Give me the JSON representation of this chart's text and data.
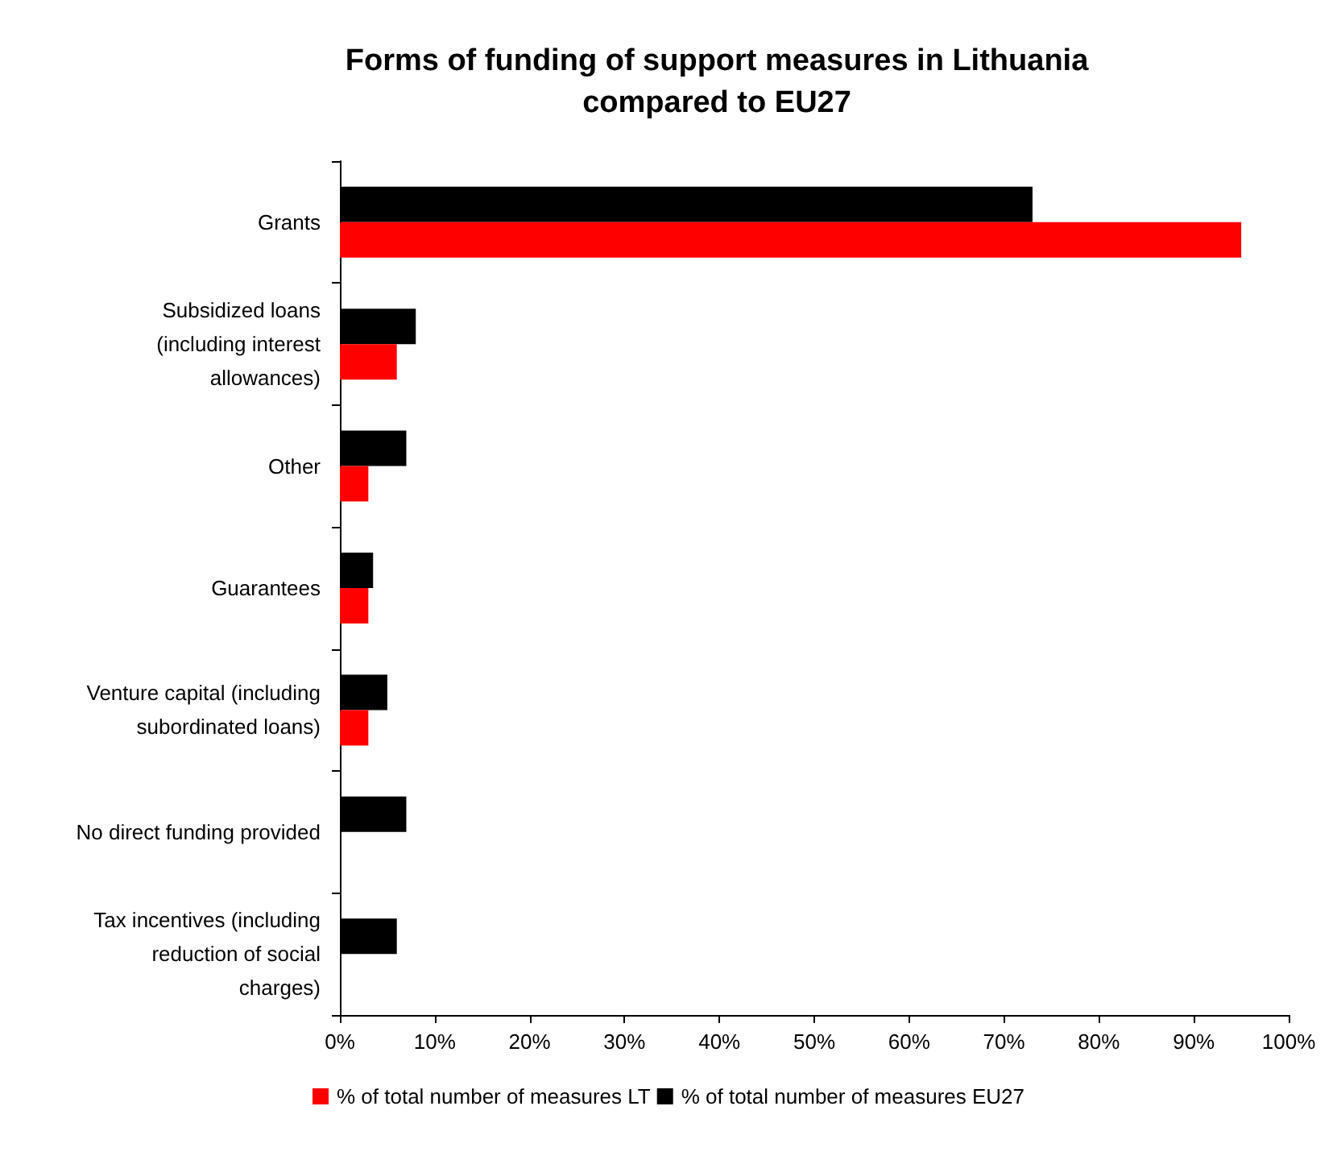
{
  "chart_data": {
    "type": "bar",
    "orientation": "horizontal",
    "title": "Forms of funding of support measures in Lithuania\ncompared to EU27",
    "categories": [
      "Grants",
      "Subsidized loans\n(including interest\nallowances)",
      "Other",
      "Guarantees",
      "Venture capital (including\nsubordinated loans)",
      "No direct funding provided",
      "Tax incentives (including\nreduction of social\ncharges)"
    ],
    "series": [
      {
        "name": "% of total number of measures LT",
        "color": "#ff0000",
        "values": [
          95,
          6,
          3,
          3,
          3,
          0,
          0
        ]
      },
      {
        "name": "% of total number of measures EU27",
        "color": "#000000",
        "values": [
          73,
          8,
          7,
          3.5,
          5,
          7,
          6
        ]
      }
    ],
    "xlim": [
      0,
      100
    ],
    "xticks": [
      {
        "value": 0,
        "label": "0%"
      },
      {
        "value": 10,
        "label": "10%"
      },
      {
        "value": 20,
        "label": "20%"
      },
      {
        "value": 30,
        "label": "30%"
      },
      {
        "value": 40,
        "label": "40%"
      },
      {
        "value": 50,
        "label": "50%"
      },
      {
        "value": 60,
        "label": "60%"
      },
      {
        "value": 70,
        "label": "70%"
      },
      {
        "value": 80,
        "label": "80%"
      },
      {
        "value": 90,
        "label": "90%"
      },
      {
        "value": 100,
        "label": "100%"
      }
    ],
    "grid": false,
    "legend": "bottom"
  }
}
